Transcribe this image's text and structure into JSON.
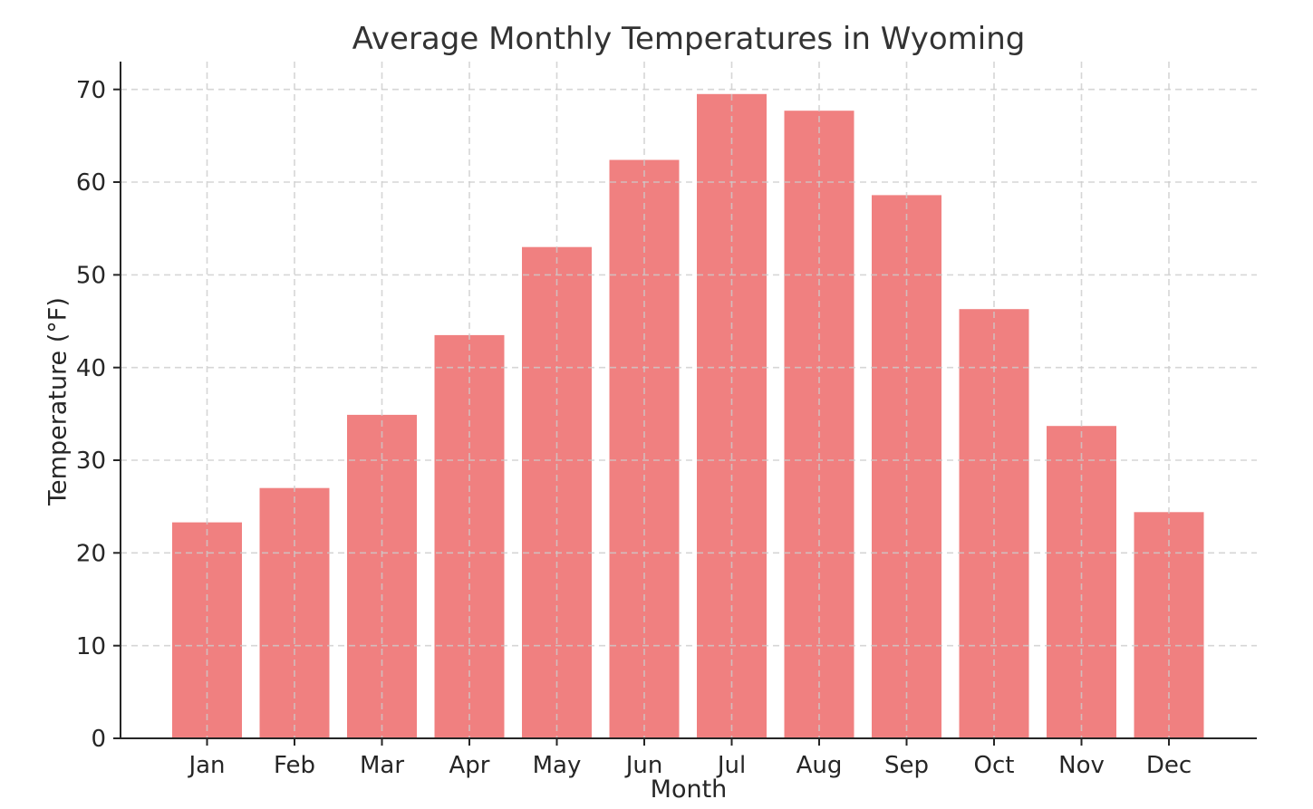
{
  "chart_data": {
    "type": "bar",
    "title": "Average Monthly Temperatures in Wyoming",
    "xlabel": "Month",
    "ylabel": "Temperature (°F)",
    "categories": [
      "Jan",
      "Feb",
      "Mar",
      "Apr",
      "May",
      "Jun",
      "Jul",
      "Aug",
      "Sep",
      "Oct",
      "Nov",
      "Dec"
    ],
    "values": [
      23.3,
      27.0,
      34.9,
      43.5,
      53.0,
      62.4,
      69.5,
      67.7,
      58.6,
      46.3,
      33.7,
      24.4
    ],
    "ylim": [
      0,
      73
    ],
    "yticks": [
      0,
      10,
      20,
      30,
      40,
      50,
      60,
      70
    ],
    "grid": true,
    "grid_style": "dashed",
    "legend": false,
    "colors": {
      "bar": "#F08080",
      "grid": "#cccccc",
      "axis": "#262626",
      "tick_text": "#262626",
      "title_text": "#333333",
      "background": "#ffffff"
    }
  }
}
